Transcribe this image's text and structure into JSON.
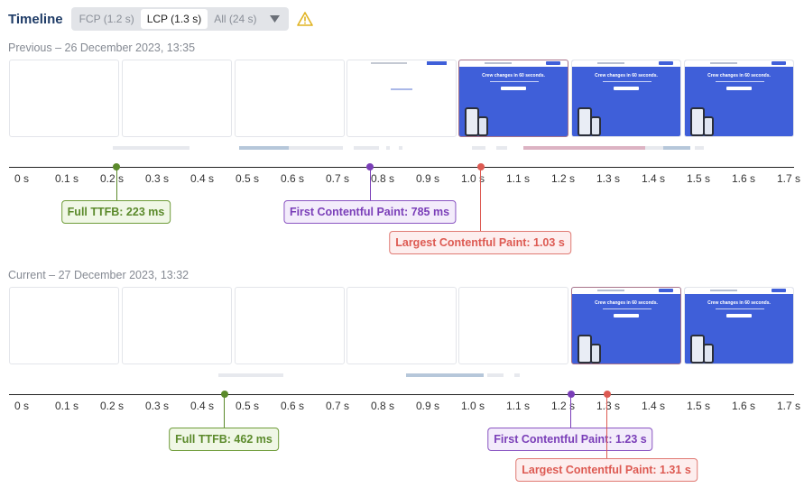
{
  "header": {
    "title": "Timeline",
    "options": [
      "FCP (1.2 s)",
      "LCP (1.3 s)",
      "All (24 s)"
    ],
    "selected": "LCP (1.3 s)"
  },
  "ticks": [
    "0 s",
    "0.1 s",
    "0.2 s",
    "0.3 s",
    "0.4 s",
    "0.5 s",
    "0.6 s",
    "0.7 s",
    "0.8 s",
    "0.9 s",
    "1.0 s",
    "1.1 s",
    "1.2 s",
    "1.3 s",
    "1.4 s",
    "1.5 s",
    "1.6 s",
    "1.7 s"
  ],
  "sections": [
    {
      "label": "Previous – 26 December 2023, 13:35",
      "frames": [
        "blank",
        "blank",
        "blank",
        "mini",
        "hero",
        "hero",
        "hero"
      ],
      "highlighted_frame": 4,
      "milestones": [
        {
          "kind": "ttfb",
          "label": "Full TTFB: 223 ms",
          "time_s": 0.223
        },
        {
          "kind": "fcp",
          "label": "First Contentful Paint: 785 ms",
          "time_s": 0.785
        },
        {
          "kind": "lcp",
          "label": "Largest Contentful Paint: 1.03 s",
          "time_s": 1.03
        }
      ]
    },
    {
      "label": "Current – 27 December 2023, 13:32",
      "frames": [
        "blank",
        "blank",
        "blank",
        "blank",
        "blank",
        "hero",
        "hero"
      ],
      "highlighted_frame": 5,
      "milestones": [
        {
          "kind": "ttfb",
          "label": "Full TTFB: 462 ms",
          "time_s": 0.462
        },
        {
          "kind": "fcp",
          "label": "First Contentful Paint: 1.23 s",
          "time_s": 1.23
        },
        {
          "kind": "lcp",
          "label": "Largest Contentful Paint: 1.31 s",
          "time_s": 1.31
        }
      ]
    }
  ],
  "frame_text": {
    "hero_heading": "Crew changes in 60 seconds."
  },
  "colors": {
    "ttfb": "#5b8a2b",
    "fcp": "#7a3eb8",
    "lcp": "#dd5a52",
    "hero_bg": "#3f5fd9"
  }
}
